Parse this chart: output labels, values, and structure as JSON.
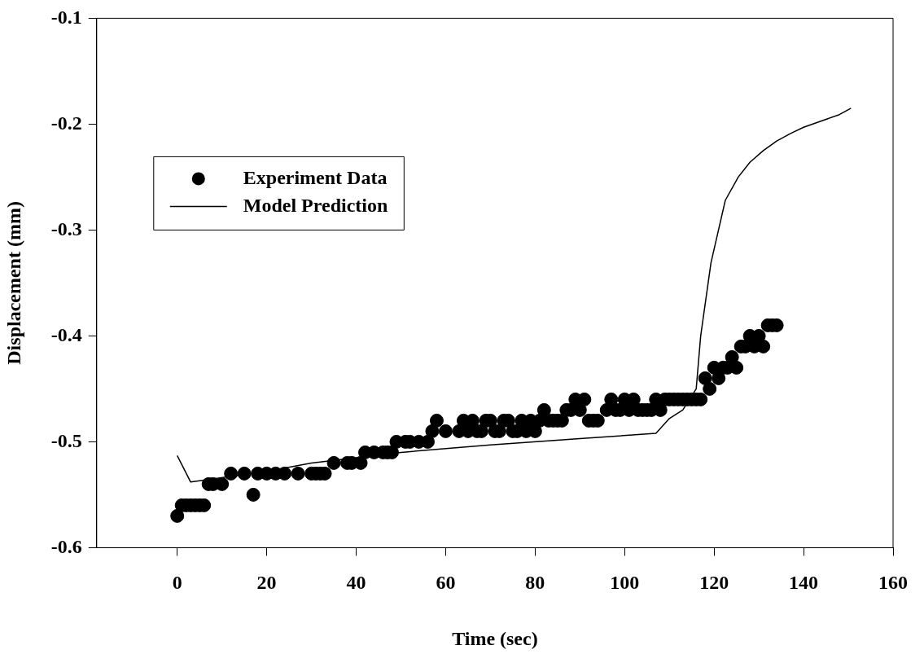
{
  "chart_data": {
    "type": "scatter",
    "xlabel": "Time (sec)",
    "ylabel": "Displacement (mm)",
    "xlim": [
      -18,
      160
    ],
    "xticks": [
      0,
      20,
      40,
      60,
      80,
      100,
      120,
      140,
      160
    ],
    "ylim": [
      -0.6,
      -0.1
    ],
    "yticks": [
      -0.6,
      -0.5,
      -0.4,
      -0.3,
      -0.2,
      -0.1
    ],
    "grid": false,
    "legend": "top left",
    "series": [
      {
        "name": "Experiment Data",
        "type": "scatter",
        "marker": "circle",
        "color": "#000000",
        "x": [
          0,
          1,
          2,
          3,
          4,
          5,
          6,
          7,
          8,
          10,
          12,
          15,
          17,
          18,
          20,
          22,
          24,
          27,
          30,
          31,
          32,
          33,
          35,
          38,
          39,
          41,
          42,
          44,
          46,
          47,
          48,
          49,
          51,
          52,
          54,
          56,
          57,
          58,
          60,
          63,
          64,
          65,
          66,
          67,
          68,
          69,
          70,
          71,
          72,
          73,
          74,
          75,
          76,
          77,
          78,
          79,
          80,
          81,
          82,
          83,
          84,
          85,
          86,
          87,
          88,
          89,
          90,
          91,
          92,
          93,
          94,
          96,
          97,
          98,
          99,
          100,
          101,
          102,
          103,
          104,
          105,
          106,
          107,
          108,
          109,
          110,
          111,
          112,
          113,
          114,
          115,
          116,
          117,
          118,
          119,
          120,
          121,
          122,
          123,
          124,
          125,
          126,
          127,
          128,
          129,
          130,
          131,
          132,
          133,
          134
        ],
        "values": [
          -0.57,
          -0.56,
          -0.56,
          -0.56,
          -0.56,
          -0.56,
          -0.56,
          -0.54,
          -0.54,
          -0.54,
          -0.53,
          -0.53,
          -0.55,
          -0.53,
          -0.53,
          -0.53,
          -0.53,
          -0.53,
          -0.53,
          -0.53,
          -0.53,
          -0.53,
          -0.52,
          -0.52,
          -0.52,
          -0.52,
          -0.51,
          -0.51,
          -0.51,
          -0.51,
          -0.51,
          -0.5,
          -0.5,
          -0.5,
          -0.5,
          -0.5,
          -0.49,
          -0.48,
          -0.49,
          -0.49,
          -0.48,
          -0.49,
          -0.48,
          -0.49,
          -0.49,
          -0.48,
          -0.48,
          -0.49,
          -0.49,
          -0.48,
          -0.48,
          -0.49,
          -0.49,
          -0.48,
          -0.49,
          -0.48,
          -0.49,
          -0.48,
          -0.47,
          -0.48,
          -0.48,
          -0.48,
          -0.48,
          -0.47,
          -0.47,
          -0.46,
          -0.47,
          -0.46,
          -0.48,
          -0.48,
          -0.48,
          -0.47,
          -0.46,
          -0.47,
          -0.47,
          -0.46,
          -0.47,
          -0.46,
          -0.47,
          -0.47,
          -0.47,
          -0.47,
          -0.46,
          -0.47,
          -0.46,
          -0.46,
          -0.46,
          -0.46,
          -0.46,
          -0.46,
          -0.46,
          -0.46,
          -0.46,
          -0.44,
          -0.45,
          -0.43,
          -0.44,
          -0.43,
          -0.43,
          -0.42,
          -0.43,
          -0.41,
          -0.41,
          -0.4,
          -0.41,
          -0.4,
          -0.41,
          -0.39,
          -0.39,
          -0.39
        ]
      },
      {
        "name": "Model Prediction",
        "type": "line",
        "marker": "none",
        "line_style": "solid",
        "color": "#000000",
        "x": [
          0,
          3,
          20,
          30,
          50,
          70,
          90,
          107,
          110,
          113,
          116,
          117,
          119.3,
          122.5,
          125.4,
          128,
          131,
          134,
          137,
          140,
          144,
          148,
          150.6
        ],
        "values": [
          -0.513,
          -0.538,
          -0.528,
          -0.52,
          -0.51,
          -0.503,
          -0.497,
          -0.492,
          -0.478,
          -0.47,
          -0.45,
          -0.4,
          -0.331,
          -0.272,
          -0.25,
          -0.236,
          -0.225,
          -0.216,
          -0.209,
          -0.203,
          -0.197,
          -0.191,
          -0.185
        ]
      }
    ]
  }
}
